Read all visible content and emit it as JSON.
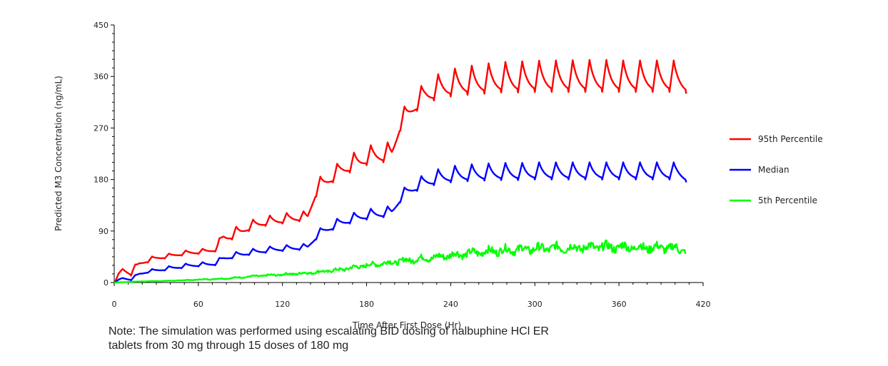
{
  "chart_data": {
    "type": "line",
    "xlabel": "Time After First Dose (Hr)",
    "ylabel": "Predicted M3 Concentration (ng/mL)",
    "xlim": [
      0,
      420
    ],
    "ylim": [
      0,
      450
    ],
    "x_ticks": [
      "0",
      "60",
      "120",
      "180",
      "240",
      "300",
      "360",
      "420"
    ],
    "y_ticks": [
      "0",
      "90",
      "180",
      "270",
      "360",
      "450"
    ],
    "grid": false,
    "legend_position": "right",
    "series": [
      {
        "name": "95th Percentile",
        "color": "#ff0000",
        "x": [
          0,
          6,
          12,
          18,
          24,
          30,
          36,
          42,
          48,
          54,
          60,
          66,
          72,
          78,
          84,
          90,
          96,
          102,
          108,
          114,
          120,
          126,
          132,
          138,
          144,
          150,
          156,
          162,
          168,
          174,
          180,
          186,
          192,
          198,
          204,
          210,
          216,
          222,
          228,
          234,
          240,
          246,
          252,
          258,
          264,
          270,
          276,
          282,
          288,
          294,
          300,
          306,
          312,
          318,
          324,
          330,
          336,
          342,
          348,
          354,
          360,
          366,
          372,
          378,
          384,
          390,
          396,
          402,
          408
        ],
        "peaks": [
          0,
          30,
          25,
          38,
          44,
          47,
          49,
          52,
          55,
          57,
          58,
          60,
          62,
          92,
          95,
          100,
          108,
          112,
          116,
          118,
          120,
          123,
          124,
          125,
          180,
          190,
          200,
          215,
          224,
          230,
          238,
          242,
          244,
          246,
          300,
          315,
          335,
          352,
          360,
          368,
          372,
          376,
          378,
          380,
          382,
          384,
          385,
          386,
          386,
          387,
          387,
          388,
          388,
          388,
          388,
          389,
          389,
          389,
          389,
          389,
          388,
          388,
          388,
          388,
          388,
          388,
          388,
          388,
          388
        ],
        "troughs": [
          0,
          18,
          12,
          30,
          35,
          40,
          42,
          45,
          47,
          49,
          50,
          52,
          54,
          70,
          75,
          82,
          90,
          95,
          99,
          101,
          103,
          105,
          107,
          108,
          150,
          165,
          175,
          185,
          192,
          198,
          205,
          208,
          210,
          212,
          265,
          285,
          300,
          312,
          318,
          322,
          325,
          327,
          328,
          329,
          330,
          331,
          332,
          332,
          332,
          333,
          333,
          333,
          333,
          333,
          333,
          333,
          333,
          333,
          333,
          333,
          333,
          333,
          333,
          333,
          333,
          333,
          333,
          333,
          330
        ]
      },
      {
        "name": "Median",
        "color": "#0000ff",
        "x": [
          0,
          6,
          12,
          18,
          24,
          30,
          36,
          42,
          48,
          54,
          60,
          66,
          72,
          78,
          84,
          90,
          96,
          102,
          108,
          114,
          120,
          126,
          132,
          138,
          144,
          150,
          156,
          162,
          168,
          174,
          180,
          186,
          192,
          198,
          204,
          210,
          216,
          222,
          228,
          234,
          240,
          246,
          252,
          258,
          264,
          270,
          276,
          282,
          288,
          294,
          300,
          306,
          312,
          318,
          324,
          330,
          336,
          342,
          348,
          354,
          360,
          366,
          372,
          378,
          384,
          390,
          396,
          402,
          408
        ],
        "peaks": [
          0,
          10,
          8,
          18,
          22,
          25,
          27,
          30,
          32,
          34,
          35,
          36,
          38,
          48,
          52,
          55,
          58,
          60,
          62,
          64,
          65,
          66,
          67,
          68,
          90,
          100,
          108,
          115,
          120,
          124,
          128,
          130,
          132,
          134,
          160,
          172,
          182,
          190,
          196,
          200,
          203,
          205,
          206,
          207,
          208,
          208,
          209,
          209,
          209,
          209,
          210,
          210,
          210,
          210,
          210,
          210,
          210,
          210,
          210,
          210,
          210,
          210,
          210,
          210,
          210,
          210,
          210,
          210,
          210
        ],
        "troughs": [
          0,
          6,
          4,
          13,
          17,
          19,
          21,
          23,
          25,
          27,
          28,
          29,
          30,
          38,
          42,
          45,
          48,
          50,
          52,
          54,
          55,
          56,
          57,
          58,
          75,
          85,
          92,
          98,
          103,
          107,
          110,
          112,
          114,
          116,
          140,
          152,
          160,
          166,
          170,
          173,
          175,
          176,
          177,
          178,
          178,
          179,
          179,
          179,
          179,
          179,
          180,
          180,
          180,
          180,
          180,
          180,
          180,
          180,
          180,
          180,
          180,
          180,
          180,
          180,
          180,
          180,
          180,
          180,
          175
        ]
      },
      {
        "name": "5th Percentile",
        "color": "#00ff00",
        "x": [
          0,
          20,
          40,
          60,
          80,
          100,
          120,
          140,
          160,
          170,
          180,
          190,
          200,
          210,
          220,
          230,
          240,
          250,
          260,
          270,
          280,
          290,
          300,
          310,
          320,
          330,
          340,
          350,
          360,
          370,
          380,
          390,
          400,
          408
        ],
        "y": [
          0,
          2,
          3,
          5,
          7,
          11,
          14,
          17,
          22,
          26,
          30,
          33,
          36,
          39,
          42,
          44,
          48,
          50,
          53,
          55,
          57,
          58,
          59,
          60,
          61,
          61,
          62,
          62,
          62,
          62,
          61,
          61,
          60,
          56
        ]
      }
    ]
  },
  "note": {
    "line1": "Note:  The simulation was performed using escalating BID dosing of nalbuphine HCl ER",
    "line2": "tablets from 30 mg through 15 doses of 180 mg"
  }
}
